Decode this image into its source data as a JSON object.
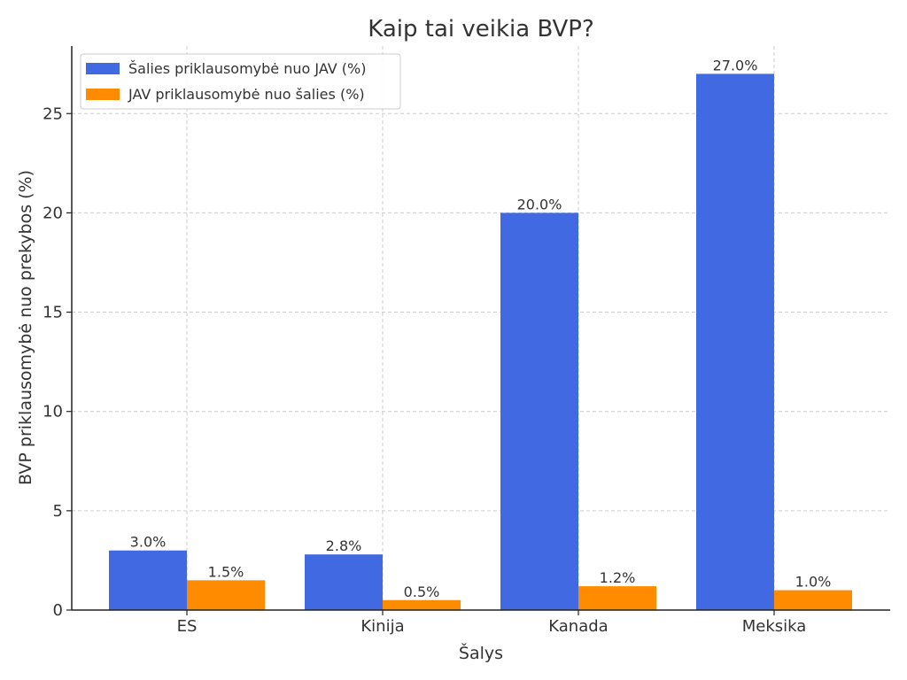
{
  "chart_data": {
    "type": "bar",
    "title": "Kaip tai veikia BVP?",
    "xlabel": "Šalys",
    "ylabel": "BVP priklausomybė nuo prekybos (%)",
    "categories": [
      "ES",
      "Kinija",
      "Kanada",
      "Meksika"
    ],
    "series": [
      {
        "name": "Šalies priklausomybė nuo JAV (%)",
        "color": "#4169e1",
        "values": [
          3.0,
          2.8,
          20.0,
          27.0
        ],
        "labels": [
          "3.0%",
          "2.8%",
          "20.0%",
          "27.0%"
        ]
      },
      {
        "name": "JAV priklausomybė nuo šalies (%)",
        "color": "#ff8c00",
        "values": [
          1.5,
          0.5,
          1.2,
          1.0
        ],
        "labels": [
          "1.5%",
          "0.5%",
          "1.2%",
          "1.0%"
        ]
      }
    ],
    "ylim": [
      0,
      28.4
    ],
    "yticks": [
      0,
      5,
      10,
      15,
      20,
      25
    ],
    "ytick_labels": [
      "0",
      "5",
      "10",
      "15",
      "20",
      "25"
    ],
    "grid": true,
    "legend_position": "top-left"
  }
}
